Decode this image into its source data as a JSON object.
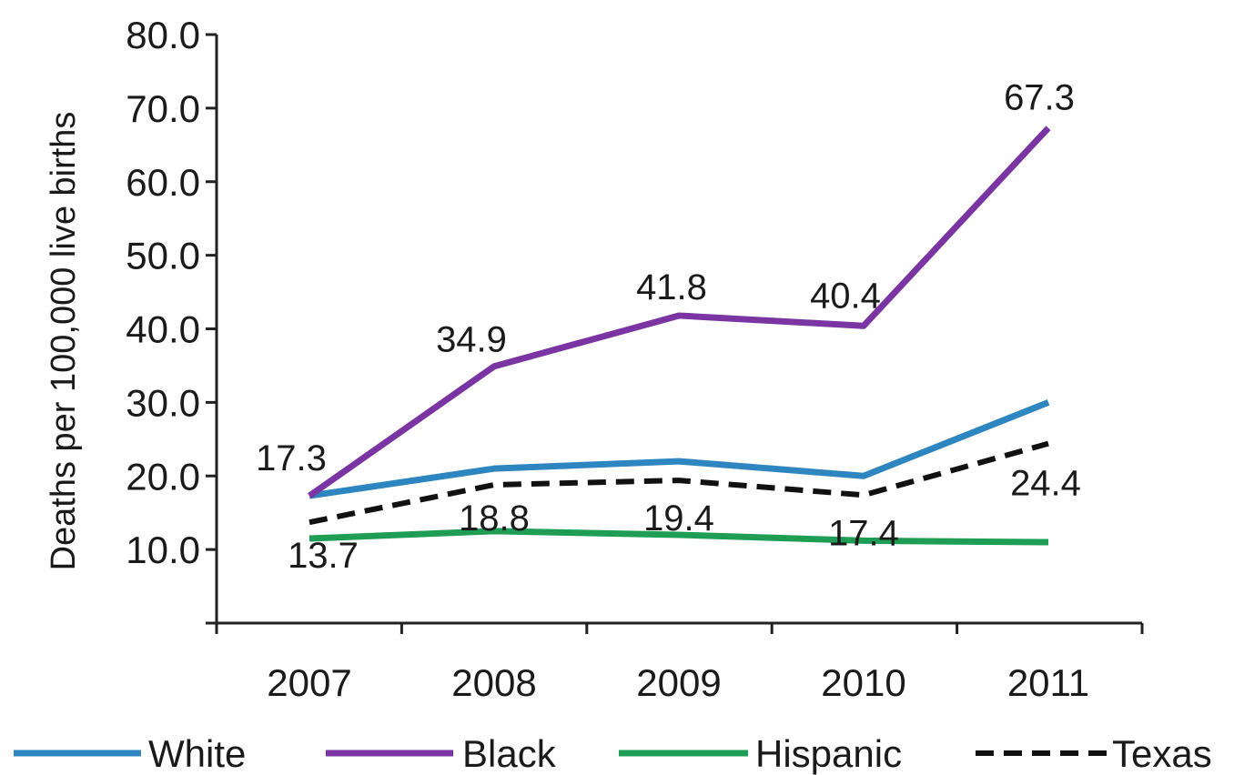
{
  "chart_data": {
    "type": "line",
    "title": "",
    "xlabel": "",
    "ylabel": "Deaths per 100,000 live births",
    "x": [
      "2007",
      "2008",
      "2009",
      "2010",
      "2011"
    ],
    "ylim": [
      0,
      80
    ],
    "yticks": [
      "80.0",
      "70.0",
      "60.0",
      "50.0",
      "40.0",
      "30.0",
      "20.0",
      "10.0"
    ],
    "grid": false,
    "legend_position": "bottom",
    "series": [
      {
        "name": "White",
        "values": [
          17.3,
          21.0,
          22.0,
          20.0,
          30.0
        ],
        "color": "#2e86c1",
        "dashed": false,
        "labels": []
      },
      {
        "name": "Black",
        "values": [
          17.3,
          34.9,
          41.8,
          40.4,
          67.3
        ],
        "color": "#7a35a3",
        "dashed": false,
        "labels": [
          "17.3",
          "34.9",
          "41.8",
          "40.4",
          "67.3"
        ]
      },
      {
        "name": "Hispanic",
        "values": [
          11.5,
          12.5,
          12.0,
          11.2,
          11.0
        ],
        "color": "#1f9d55",
        "dashed": false,
        "labels": []
      },
      {
        "name": "Texas",
        "values": [
          13.7,
          18.8,
          19.4,
          17.4,
          24.4
        ],
        "color": "#111111",
        "dashed": true,
        "labels": [
          "13.7",
          "18.8",
          "19.4",
          "17.4",
          "24.4"
        ]
      }
    ]
  }
}
